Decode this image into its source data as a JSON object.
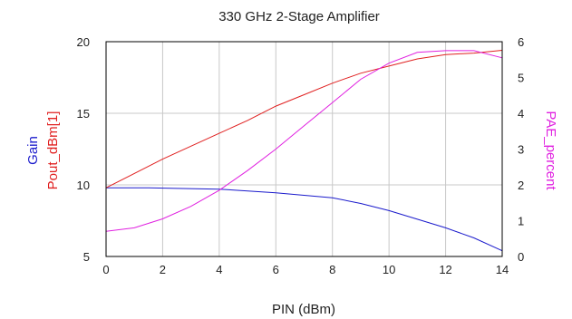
{
  "chart_data": {
    "type": "line",
    "title": "330 GHz 2-Stage Amplifier",
    "xlabel": "PIN (dBm)",
    "ylabel_left_series": [
      "Gain",
      "Pout_dBm[1]"
    ],
    "ylabel_right": "PAE_percent",
    "xlim": [
      0,
      14
    ],
    "ylim_left": [
      5,
      20
    ],
    "ylim_right": [
      0,
      6
    ],
    "x_ticks": [
      0,
      2,
      4,
      6,
      8,
      10,
      12,
      14
    ],
    "y_ticks_left": [
      5,
      10,
      15,
      20
    ],
    "y_ticks_right": [
      0,
      1,
      2,
      3,
      4,
      5,
      6
    ],
    "grid": true,
    "series": [
      {
        "name": "Gain",
        "axis": "left",
        "color": "#1a1acc",
        "x": [
          0,
          1.5,
          2.5,
          4,
          6,
          8,
          9,
          10,
          11,
          12,
          13,
          14
        ],
        "y": [
          9.8,
          9.8,
          9.75,
          9.7,
          9.45,
          9.1,
          8.7,
          8.2,
          7.6,
          7.0,
          6.3,
          5.4
        ]
      },
      {
        "name": "Pout_dBm[1]",
        "axis": "left",
        "color": "#e02020",
        "x": [
          0,
          1,
          2,
          3,
          4,
          5,
          6,
          7,
          8,
          9,
          10,
          11,
          12,
          13,
          14
        ],
        "y": [
          9.8,
          10.8,
          11.8,
          12.7,
          13.6,
          14.5,
          15.5,
          16.3,
          17.1,
          17.8,
          18.3,
          18.8,
          19.1,
          19.2,
          19.4
        ]
      },
      {
        "name": "PAE_percent",
        "axis": "right",
        "color": "#e020e0",
        "x": [
          0,
          1,
          2,
          3,
          4,
          5,
          6,
          7,
          8,
          9,
          10,
          11,
          12,
          13,
          14
        ],
        "y": [
          0.7,
          0.8,
          1.05,
          1.4,
          1.85,
          2.4,
          3.0,
          3.65,
          4.3,
          4.95,
          5.4,
          5.7,
          5.75,
          5.75,
          5.55
        ]
      }
    ]
  }
}
